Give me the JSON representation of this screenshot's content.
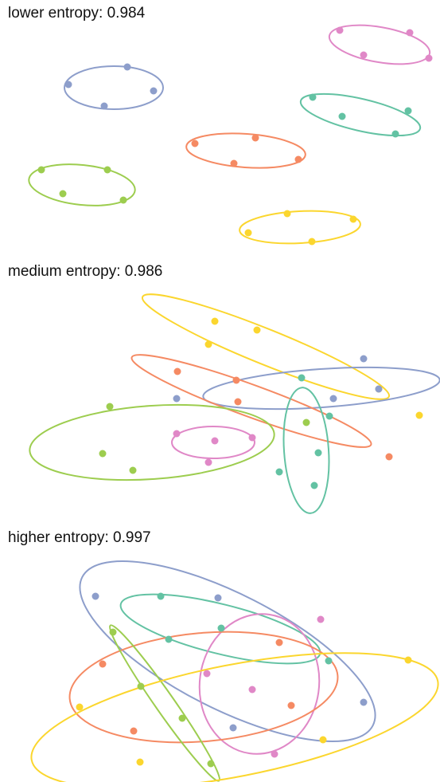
{
  "palette": {
    "blue": "#8d9ecb",
    "orange": "#f58a63",
    "green": "#9dcd4f",
    "pink": "#e088c7",
    "teal": "#63c2a3",
    "yellow": "#fbd62e"
  },
  "chart_data": [
    {
      "type": "scatter",
      "title": "lower entropy: 0.984",
      "xlim": [
        0,
        553
      ],
      "ylim": [
        35,
        310
      ],
      "series": [
        {
          "color_key": "pink",
          "points": [
            [
              427,
              38
            ],
            [
              515,
              41
            ],
            [
              457,
              69
            ],
            [
              539,
              73
            ]
          ],
          "ellipse": {
            "cx": 477,
            "cy": 56,
            "rx": 64,
            "ry": 22,
            "angle": 10
          }
        },
        {
          "color_key": "blue",
          "points": [
            [
              160,
              84
            ],
            [
              86,
              106
            ],
            [
              193,
              114
            ],
            [
              131,
              133
            ]
          ],
          "ellipse": {
            "cx": 143,
            "cy": 110,
            "rx": 62,
            "ry": 27,
            "angle": 0
          }
        },
        {
          "color_key": "teal",
          "points": [
            [
              393,
              122
            ],
            [
              513,
              139
            ],
            [
              430,
              146
            ],
            [
              497,
              168
            ]
          ],
          "ellipse": {
            "cx": 453,
            "cy": 144,
            "rx": 77,
            "ry": 20,
            "angle": 13
          }
        },
        {
          "color_key": "orange",
          "points": [
            [
              321,
              173
            ],
            [
              245,
              180
            ],
            [
              375,
              200
            ],
            [
              294,
              205
            ]
          ],
          "ellipse": {
            "cx": 309,
            "cy": 189,
            "rx": 75,
            "ry": 21,
            "angle": 4
          }
        },
        {
          "color_key": "green",
          "points": [
            [
              52,
              213
            ],
            [
              135,
              213
            ],
            [
              79,
              243
            ],
            [
              155,
              251
            ]
          ],
          "ellipse": {
            "cx": 103,
            "cy": 232,
            "rx": 67,
            "ry": 25,
            "angle": 6
          }
        },
        {
          "color_key": "yellow",
          "points": [
            [
              361,
              268
            ],
            [
              444,
              275
            ],
            [
              312,
              292
            ],
            [
              392,
              303
            ]
          ],
          "ellipse": {
            "cx": 377,
            "cy": 285,
            "rx": 76,
            "ry": 20,
            "angle": -3
          }
        }
      ]
    },
    {
      "type": "scatter",
      "title": "medium entropy: 0.986",
      "xlim": [
        0,
        553
      ],
      "ylim": [
        365,
        645
      ],
      "series": [
        {
          "color_key": "yellow",
          "points": [
            [
              270,
              403
            ],
            [
              323,
              414
            ],
            [
              262,
              432
            ],
            [
              476,
              488
            ],
            [
              527,
              521
            ]
          ],
          "ellipse": {
            "cx": 334,
            "cy": 435,
            "rx": 167,
            "ry": 22,
            "angle": 22
          }
        },
        {
          "color_key": "blue",
          "points": [
            [
              457,
              450
            ],
            [
              222,
              500
            ],
            [
              419,
              500
            ],
            [
              476,
              488
            ]
          ],
          "ellipse": {
            "cx": 404,
            "cy": 487,
            "rx": 149,
            "ry": 24,
            "angle": -4
          }
        },
        {
          "color_key": "orange",
          "points": [
            [
              223,
              466
            ],
            [
              297,
              477
            ],
            [
              299,
              504
            ],
            [
              489,
              573
            ]
          ],
          "ellipse": {
            "cx": 316,
            "cy": 503,
            "rx": 160,
            "ry": 20,
            "angle": 20
          }
        },
        {
          "color_key": "teal",
          "points": [
            [
              379,
              474
            ],
            [
              414,
              522
            ],
            [
              400,
              568
            ],
            [
              351,
              592
            ],
            [
              395,
              609
            ]
          ],
          "ellipse": {
            "cx": 385,
            "cy": 565,
            "rx": 28,
            "ry": 79,
            "angle": -4
          }
        },
        {
          "color_key": "green",
          "points": [
            [
              138,
              510
            ],
            [
              385,
              530
            ],
            [
              129,
              569
            ],
            [
              167,
              590
            ]
          ],
          "ellipse": {
            "cx": 191,
            "cy": 555,
            "rx": 154,
            "ry": 46,
            "angle": -4
          }
        },
        {
          "color_key": "pink",
          "points": [
            [
              222,
              544
            ],
            [
              270,
              553
            ],
            [
              317,
              549
            ],
            [
              262,
              580
            ]
          ],
          "ellipse": {
            "cx": 268,
            "cy": 555,
            "rx": 52,
            "ry": 20,
            "angle": 0
          }
        }
      ]
    },
    {
      "type": "scatter",
      "title": "higher entropy: 0.997",
      "xlim": [
        0,
        553
      ],
      "ylim": [
        700,
        981
      ],
      "series": [
        {
          "color_key": "blue",
          "points": [
            [
              120,
              748
            ],
            [
              274,
              750
            ],
            [
              457,
              881
            ],
            [
              293,
              913
            ]
          ],
          "ellipse": {
            "cx": 286,
            "cy": 817,
            "rx": 205,
            "ry": 72,
            "angle": 27
          }
        },
        {
          "color_key": "teal",
          "points": [
            [
              202,
              748
            ],
            [
              278,
              788
            ],
            [
              212,
              802
            ],
            [
              413,
              829
            ]
          ],
          "ellipse": {
            "cx": 277,
            "cy": 789,
            "rx": 129,
            "ry": 31,
            "angle": 14
          }
        },
        {
          "color_key": "pink",
          "points": [
            [
              403,
              777
            ],
            [
              260,
              845
            ],
            [
              317,
              865
            ],
            [
              345,
              946
            ]
          ],
          "ellipse": {
            "cx": 326,
            "cy": 858,
            "rx": 75,
            "ry": 88,
            "angle": 8
          }
        },
        {
          "color_key": "orange",
          "points": [
            [
              351,
              806
            ],
            [
              129,
              833
            ],
            [
              366,
              885
            ],
            [
              168,
              917
            ]
          ],
          "ellipse": {
            "cx": 256,
            "cy": 862,
            "rx": 169,
            "ry": 68,
            "angle": -5
          }
        },
        {
          "color_key": "green",
          "points": [
            [
              142,
              793
            ],
            [
              177,
              861
            ],
            [
              229,
              901
            ],
            [
              265,
              958
            ]
          ],
          "ellipse": {
            "cx": 207,
            "cy": 882,
            "rx": 119,
            "ry": 12,
            "angle": 55
          }
        },
        {
          "color_key": "yellow",
          "points": [
            [
              513,
              828
            ],
            [
              100,
              887
            ],
            [
              406,
              928
            ],
            [
              176,
              956
            ]
          ],
          "ellipse": {
            "cx": 295,
            "cy": 904,
            "rx": 260,
            "ry": 70,
            "angle": -11
          }
        }
      ]
    }
  ]
}
